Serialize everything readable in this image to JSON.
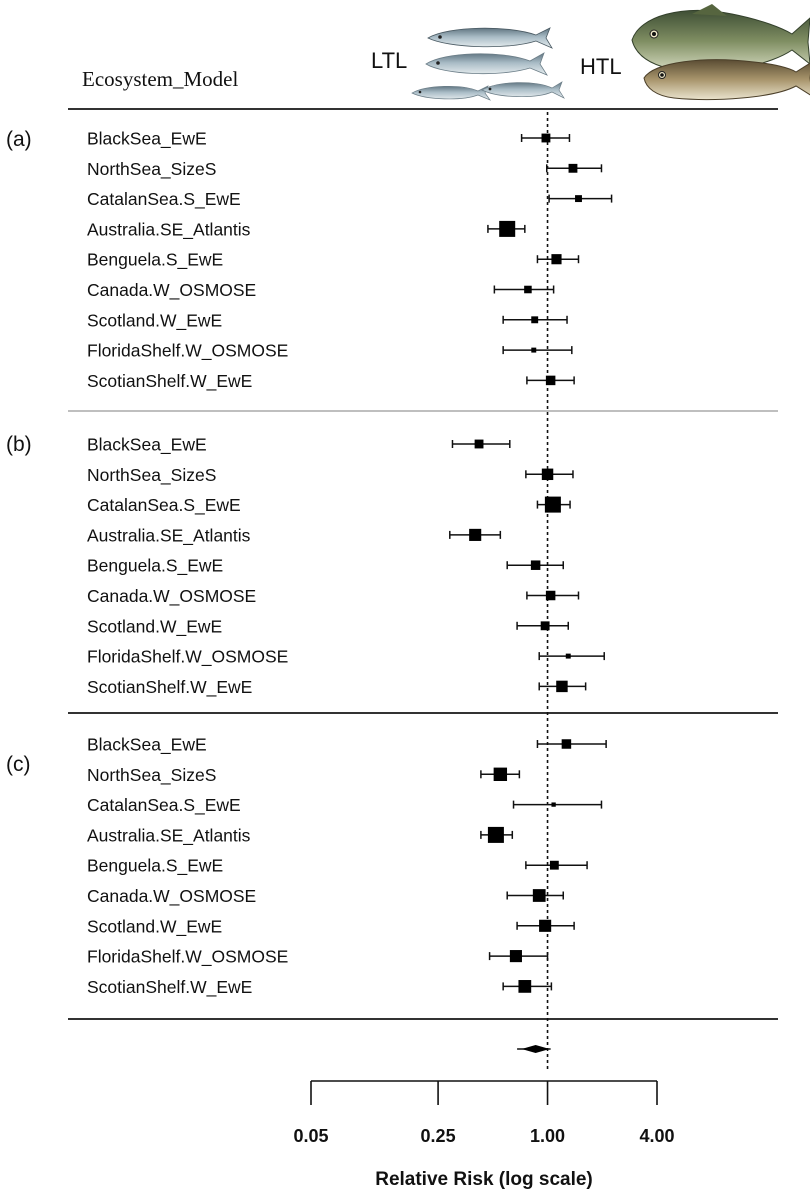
{
  "header": {
    "column_title": "Ecosystem_Model",
    "ltl_label": "LTL",
    "htl_label": "HTL"
  },
  "fish_icons": {
    "ltl": [
      "small-pelagic-fish-icon",
      "small-pelagic-fish-icon",
      "small-pelagic-fish-icon",
      "small-pelagic-fish-icon"
    ],
    "htl": [
      "cod-icon",
      "hake-icon"
    ]
  },
  "chart_data": {
    "type": "forest",
    "xlabel": "Relative Risk (log scale)",
    "x_scale": "log",
    "xlim": [
      0.05,
      4.0
    ],
    "xticks": [
      0.05,
      0.25,
      1.0,
      4.0
    ],
    "xtick_labels": [
      "0.05",
      "0.25",
      "1.00",
      "4.00"
    ],
    "reference_line": 1.0,
    "panels": [
      {
        "label": "(a)",
        "rows": [
          {
            "model": "BlackSea_EwE",
            "estimate": 0.98,
            "lower": 0.72,
            "upper": 1.32,
            "weight": 0.45
          },
          {
            "model": "NorthSea_SizeS",
            "estimate": 1.38,
            "lower": 0.99,
            "upper": 1.98,
            "weight": 0.45
          },
          {
            "model": "CatalanSea.S_EwE",
            "estimate": 1.48,
            "lower": 1.02,
            "upper": 2.25,
            "weight": 0.3
          },
          {
            "model": "Australia.SE_Atlantis",
            "estimate": 0.6,
            "lower": 0.47,
            "upper": 0.75,
            "weight": 1.0
          },
          {
            "model": "Benguela.S_EwE",
            "estimate": 1.12,
            "lower": 0.88,
            "upper": 1.48,
            "weight": 0.55
          },
          {
            "model": "Canada.W_OSMOSE",
            "estimate": 0.78,
            "lower": 0.51,
            "upper": 1.08,
            "weight": 0.35
          },
          {
            "model": "Scotland.W_EwE",
            "estimate": 0.85,
            "lower": 0.57,
            "upper": 1.28,
            "weight": 0.3
          },
          {
            "model": "FloridaShelf.W_OSMOSE",
            "estimate": 0.84,
            "lower": 0.57,
            "upper": 1.36,
            "weight": 0.15
          },
          {
            "model": "ScotianShelf.W_EwE",
            "estimate": 1.04,
            "lower": 0.77,
            "upper": 1.4,
            "weight": 0.5
          }
        ]
      },
      {
        "label": "(b)",
        "rows": [
          {
            "model": "BlackSea_EwE",
            "estimate": 0.42,
            "lower": 0.3,
            "upper": 0.62,
            "weight": 0.45
          },
          {
            "model": "NorthSea_SizeS",
            "estimate": 1.0,
            "lower": 0.76,
            "upper": 1.38,
            "weight": 0.65
          },
          {
            "model": "CatalanSea.S_EwE",
            "estimate": 1.07,
            "lower": 0.88,
            "upper": 1.33,
            "weight": 1.0
          },
          {
            "model": "Australia.SE_Atlantis",
            "estimate": 0.4,
            "lower": 0.29,
            "upper": 0.55,
            "weight": 0.7
          },
          {
            "model": "Benguela.S_EwE",
            "estimate": 0.86,
            "lower": 0.6,
            "upper": 1.22,
            "weight": 0.5
          },
          {
            "model": "Canada.W_OSMOSE",
            "estimate": 1.04,
            "lower": 0.77,
            "upper": 1.48,
            "weight": 0.5
          },
          {
            "model": "Scotland.W_EwE",
            "estimate": 0.97,
            "lower": 0.68,
            "upper": 1.3,
            "weight": 0.45
          },
          {
            "model": "FloridaShelf.W_OSMOSE",
            "estimate": 1.3,
            "lower": 0.9,
            "upper": 2.05,
            "weight": 0.15
          },
          {
            "model": "ScotianShelf.W_EwE",
            "estimate": 1.2,
            "lower": 0.9,
            "upper": 1.62,
            "weight": 0.65
          }
        ]
      },
      {
        "label": "(c)",
        "rows": [
          {
            "model": "BlackSea_EwE",
            "estimate": 1.27,
            "lower": 0.88,
            "upper": 2.1,
            "weight": 0.5
          },
          {
            "model": "NorthSea_SizeS",
            "estimate": 0.55,
            "lower": 0.43,
            "upper": 0.7,
            "weight": 0.8
          },
          {
            "model": "CatalanSea.S_EwE",
            "estimate": 1.08,
            "lower": 0.65,
            "upper": 1.98,
            "weight": 0.1
          },
          {
            "model": "Australia.SE_Atlantis",
            "estimate": 0.52,
            "lower": 0.43,
            "upper": 0.64,
            "weight": 1.0
          },
          {
            "model": "Benguela.S_EwE",
            "estimate": 1.09,
            "lower": 0.76,
            "upper": 1.65,
            "weight": 0.45
          },
          {
            "model": "Canada.W_OSMOSE",
            "estimate": 0.9,
            "lower": 0.6,
            "upper": 1.22,
            "weight": 0.75
          },
          {
            "model": "Scotland.W_EwE",
            "estimate": 0.97,
            "lower": 0.68,
            "upper": 1.4,
            "weight": 0.7
          },
          {
            "model": "FloridaShelf.W_OSMOSE",
            "estimate": 0.67,
            "lower": 0.48,
            "upper": 1.0,
            "weight": 0.7
          },
          {
            "model": "ScotianShelf.W_EwE",
            "estimate": 0.75,
            "lower": 0.57,
            "upper": 1.05,
            "weight": 0.75
          }
        ]
      }
    ],
    "summary": {
      "estimate": 0.86,
      "lower": 0.68,
      "upper": 1.04
    }
  }
}
